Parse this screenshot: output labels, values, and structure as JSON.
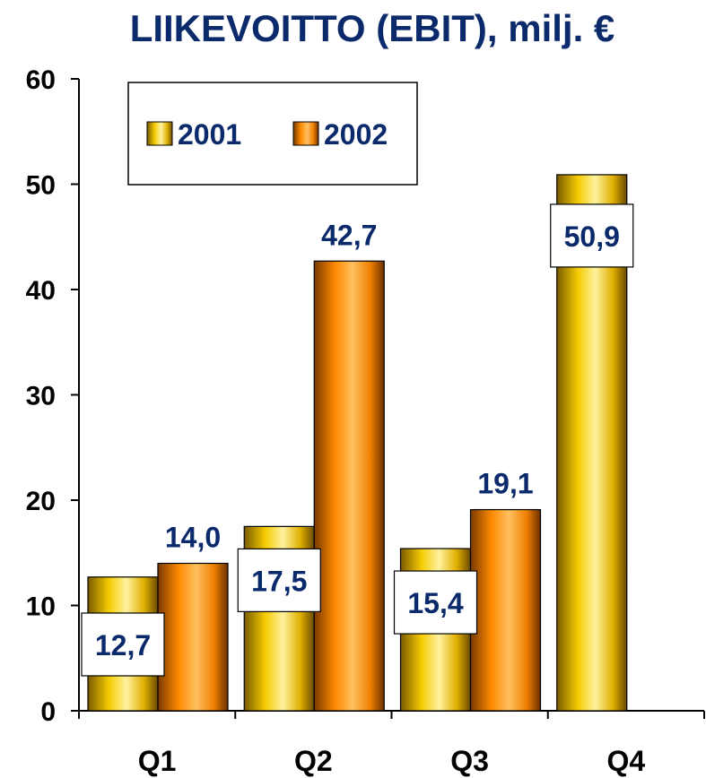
{
  "chart_data": {
    "type": "bar",
    "title": "LIIKEVOITTO (EBIT), milj. €",
    "categories": [
      "Q1",
      "Q2",
      "Q3",
      "Q4"
    ],
    "series": [
      {
        "name": "2001",
        "values": [
          12.7,
          17.5,
          15.4,
          50.9
        ],
        "labels": [
          "12,7",
          "17,5",
          "15,4",
          "50,9"
        ],
        "color": "#f2c200"
      },
      {
        "name": "2002",
        "values": [
          14.0,
          42.7,
          19.1,
          null
        ],
        "labels": [
          "14,0",
          "42,7",
          "19,1",
          ""
        ],
        "color": "#ff8c00"
      }
    ],
    "ylim": [
      0,
      60
    ],
    "yticks": [
      0,
      10,
      20,
      30,
      40,
      50,
      60
    ],
    "grid": false,
    "legend": "top-left"
  }
}
